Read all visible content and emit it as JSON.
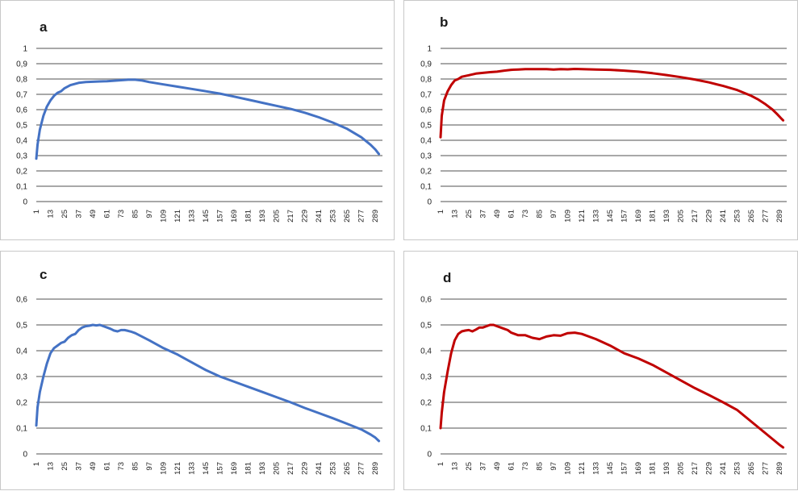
{
  "chart_data": [
    {
      "type": "line",
      "panel_label": "a",
      "yticks": [
        "0",
        "0,1",
        "0,2",
        "0,3",
        "0,4",
        "0,5",
        "0,6",
        "0,7",
        "0,8",
        "0,9",
        "1"
      ],
      "ylim": [
        0,
        1
      ],
      "xticks": [
        "1",
        "13",
        "25",
        "37",
        "49",
        "61",
        "73",
        "85",
        "97",
        "109",
        "121",
        "133",
        "145",
        "157",
        "169",
        "181",
        "193",
        "205",
        "217",
        "229",
        "241",
        "253",
        "265",
        "277",
        "289"
      ],
      "xlim": [
        1,
        295
      ],
      "series": [
        {
          "color": "#4472C4",
          "x": [
            1,
            2,
            4,
            7,
            10,
            13,
            16,
            19,
            22,
            25,
            30,
            37,
            43,
            49,
            55,
            61,
            67,
            73,
            79,
            85,
            91,
            97,
            109,
            121,
            133,
            145,
            157,
            169,
            181,
            193,
            205,
            217,
            229,
            241,
            253,
            265,
            277,
            285,
            289,
            292
          ],
          "y": [
            0.28,
            0.37,
            0.47,
            0.56,
            0.62,
            0.66,
            0.69,
            0.71,
            0.72,
            0.74,
            0.76,
            0.775,
            0.78,
            0.782,
            0.784,
            0.786,
            0.789,
            0.792,
            0.795,
            0.795,
            0.79,
            0.78,
            0.765,
            0.75,
            0.735,
            0.72,
            0.705,
            0.685,
            0.665,
            0.645,
            0.625,
            0.605,
            0.58,
            0.55,
            0.515,
            0.475,
            0.42,
            0.37,
            0.34,
            0.31
          ]
        }
      ]
    },
    {
      "type": "line",
      "panel_label": "b",
      "yticks": [
        "0",
        "0,1",
        "0,2",
        "0,3",
        "0,4",
        "0,5",
        "0,6",
        "0,7",
        "0,8",
        "0,9",
        "1"
      ],
      "ylim": [
        0,
        1
      ],
      "xticks": [
        "1",
        "13",
        "25",
        "37",
        "49",
        "61",
        "73",
        "85",
        "97",
        "109",
        "121",
        "133",
        "145",
        "157",
        "169",
        "181",
        "193",
        "205",
        "217",
        "229",
        "241",
        "253",
        "265",
        "277",
        "289"
      ],
      "xlim": [
        1,
        295
      ],
      "series": [
        {
          "color": "#C00000",
          "x": [
            1,
            2,
            4,
            7,
            10,
            13,
            16,
            19,
            25,
            31,
            37,
            43,
            49,
            55,
            61,
            67,
            73,
            79,
            85,
            91,
            97,
            103,
            109,
            115,
            121,
            133,
            145,
            157,
            169,
            181,
            193,
            205,
            217,
            229,
            241,
            253,
            265,
            271,
            277,
            283,
            287,
            290,
            292
          ],
          "y": [
            0.42,
            0.56,
            0.66,
            0.72,
            0.76,
            0.79,
            0.8,
            0.815,
            0.825,
            0.835,
            0.84,
            0.845,
            0.848,
            0.855,
            0.86,
            0.862,
            0.865,
            0.865,
            0.865,
            0.865,
            0.862,
            0.865,
            0.863,
            0.866,
            0.864,
            0.862,
            0.86,
            0.855,
            0.848,
            0.838,
            0.826,
            0.812,
            0.797,
            0.778,
            0.755,
            0.728,
            0.69,
            0.665,
            0.635,
            0.6,
            0.57,
            0.545,
            0.53
          ]
        }
      ]
    },
    {
      "type": "line",
      "panel_label": "c",
      "yticks": [
        "0",
        "0,1",
        "0,2",
        "0,3",
        "0,4",
        "0,5",
        "0,6"
      ],
      "ylim": [
        0,
        0.6
      ],
      "xticks": [
        "1",
        "13",
        "25",
        "37",
        "49",
        "61",
        "73",
        "85",
        "97",
        "109",
        "121",
        "133",
        "145",
        "157",
        "169",
        "181",
        "193",
        "205",
        "217",
        "229",
        "241",
        "253",
        "265",
        "277",
        "289"
      ],
      "xlim": [
        1,
        295
      ],
      "series": [
        {
          "color": "#4472C4",
          "x": [
            1,
            2,
            4,
            7,
            10,
            13,
            16,
            19,
            22,
            25,
            28,
            31,
            34,
            37,
            40,
            43,
            46,
            49,
            52,
            55,
            58,
            61,
            64,
            67,
            70,
            73,
            76,
            79,
            82,
            85,
            97,
            109,
            121,
            133,
            145,
            157,
            169,
            181,
            193,
            205,
            217,
            229,
            241,
            253,
            265,
            277,
            285,
            289,
            292
          ],
          "y": [
            0.11,
            0.18,
            0.24,
            0.3,
            0.35,
            0.39,
            0.41,
            0.42,
            0.43,
            0.435,
            0.45,
            0.46,
            0.465,
            0.48,
            0.49,
            0.495,
            0.497,
            0.5,
            0.498,
            0.5,
            0.495,
            0.49,
            0.485,
            0.478,
            0.475,
            0.48,
            0.48,
            0.477,
            0.473,
            0.468,
            0.44,
            0.41,
            0.385,
            0.355,
            0.325,
            0.3,
            0.28,
            0.26,
            0.24,
            0.22,
            0.2,
            0.178,
            0.158,
            0.138,
            0.117,
            0.095,
            0.075,
            0.063,
            0.05
          ]
        }
      ]
    },
    {
      "type": "line",
      "panel_label": "d",
      "yticks": [
        "0",
        "0,1",
        "0,2",
        "0,3",
        "0,4",
        "0,5",
        "0,6"
      ],
      "ylim": [
        0,
        0.6
      ],
      "xticks": [
        "1",
        "13",
        "25",
        "37",
        "49",
        "61",
        "73",
        "85",
        "97",
        "109",
        "121",
        "133",
        "145",
        "157",
        "169",
        "181",
        "193",
        "205",
        "217",
        "229",
        "241",
        "253",
        "265",
        "277",
        "289"
      ],
      "xlim": [
        1,
        295
      ],
      "series": [
        {
          "color": "#C00000",
          "x": [
            1,
            2,
            4,
            7,
            10,
            13,
            16,
            19,
            22,
            25,
            28,
            31,
            34,
            37,
            40,
            43,
            46,
            49,
            52,
            55,
            58,
            61,
            67,
            73,
            79,
            85,
            91,
            97,
            103,
            109,
            115,
            121,
            133,
            145,
            157,
            169,
            181,
            193,
            205,
            217,
            229,
            241,
            253,
            265,
            277,
            285,
            289,
            292
          ],
          "y": [
            0.1,
            0.16,
            0.24,
            0.32,
            0.39,
            0.44,
            0.465,
            0.475,
            0.478,
            0.48,
            0.475,
            0.482,
            0.49,
            0.49,
            0.495,
            0.5,
            0.5,
            0.495,
            0.49,
            0.485,
            0.48,
            0.47,
            0.46,
            0.46,
            0.45,
            0.445,
            0.455,
            0.46,
            0.458,
            0.468,
            0.47,
            0.465,
            0.445,
            0.42,
            0.39,
            0.37,
            0.345,
            0.315,
            0.285,
            0.255,
            0.228,
            0.2,
            0.17,
            0.125,
            0.08,
            0.05,
            0.035,
            0.025
          ]
        }
      ]
    }
  ]
}
